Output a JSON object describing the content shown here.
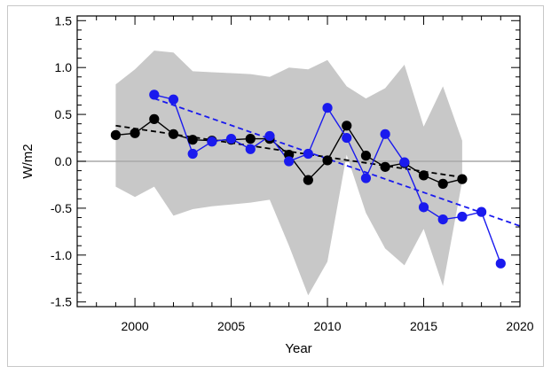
{
  "chart_data": {
    "type": "line",
    "title": "",
    "xlabel": "Year",
    "ylabel": "W/m2",
    "xlim": [
      1997,
      2020
    ],
    "ylim": [
      -1.55,
      1.55
    ],
    "xticks": [
      "2000",
      "2005",
      "2010",
      "2015",
      "2020"
    ],
    "yticks": [
      "1.5",
      "1.0",
      "0.5",
      "0.0",
      "-0.5",
      "-1.0",
      "-1.5"
    ],
    "grid": false,
    "legend": "none",
    "band": {
      "color": "#c8c8c8",
      "x": [
        1999,
        2000,
        2001,
        2002,
        2003,
        2004,
        2005,
        2006,
        2007,
        2008,
        2009,
        2010,
        2011,
        2012,
        2013,
        2014,
        2015,
        2016,
        2017
      ],
      "upper": [
        0.82,
        0.98,
        1.18,
        1.16,
        0.96,
        0.95,
        0.94,
        0.93,
        0.9,
        1.0,
        0.98,
        1.08,
        0.8,
        0.67,
        0.78,
        1.03,
        0.37,
        0.8,
        0.22
      ],
      "lower": [
        -0.27,
        -0.38,
        -0.27,
        -0.58,
        -0.51,
        -0.48,
        -0.46,
        -0.44,
        -0.41,
        -0.9,
        -1.43,
        -1.07,
        0.07,
        -0.55,
        -0.93,
        -1.11,
        -0.72,
        -1.33,
        -0.21
      ]
    },
    "zero_line_color": "#a8a8a8",
    "series": [
      {
        "color": "#000000",
        "x": [
          1999,
          2000,
          2001,
          2002,
          2003,
          2004,
          2005,
          2006,
          2007,
          2008,
          2009,
          2010,
          2011,
          2012,
          2013,
          2014,
          2015,
          2016,
          2017
        ],
        "values": [
          0.28,
          0.3,
          0.45,
          0.29,
          0.23,
          0.22,
          0.23,
          0.24,
          0.24,
          0.07,
          -0.2,
          0.01,
          0.38,
          0.06,
          -0.06,
          -0.02,
          -0.15,
          -0.24,
          -0.19
        ]
      },
      {
        "color": "#1a1aee",
        "x": [
          2001,
          2002,
          2003,
          2004,
          2005,
          2006,
          2007,
          2008,
          2009,
          2010,
          2011,
          2012,
          2013,
          2014,
          2015,
          2016,
          2017,
          2018,
          2019
        ],
        "values": [
          0.71,
          0.66,
          0.08,
          0.21,
          0.24,
          0.13,
          0.27,
          0.0,
          0.08,
          0.57,
          0.25,
          -0.18,
          0.29,
          -0.01,
          -0.49,
          -0.62,
          -0.59,
          -0.54,
          -1.09
        ]
      }
    ],
    "trendlines": [
      {
        "color": "#000000",
        "style": "dashed",
        "x": [
          1999,
          2017
        ],
        "values": [
          0.38,
          -0.17
        ]
      },
      {
        "color": "#1a1aee",
        "style": "dashed",
        "x": [
          2001,
          2020
        ],
        "values": [
          0.67,
          -0.69
        ]
      }
    ]
  }
}
